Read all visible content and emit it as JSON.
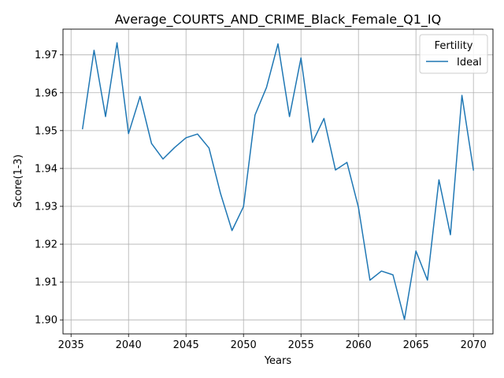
{
  "chart_data": {
    "type": "line",
    "title": "Average_COURTS_AND_CRIME_Black_Female_Q1_IQ",
    "xlabel": "Years",
    "ylabel": "Score(1-3)",
    "xlim": [
      2034.3,
      2071.7
    ],
    "ylim": [
      1.8963,
      1.9768
    ],
    "xticks": [
      2035,
      2040,
      2045,
      2050,
      2055,
      2060,
      2065,
      2070
    ],
    "yticks": [
      1.9,
      1.91,
      1.92,
      1.93,
      1.94,
      1.95,
      1.96,
      1.97
    ],
    "xtick_labels": [
      "2035",
      "2040",
      "2045",
      "2050",
      "2055",
      "2060",
      "2065",
      "2070"
    ],
    "ytick_labels": [
      "1.90",
      "1.91",
      "1.92",
      "1.93",
      "1.94",
      "1.95",
      "1.96",
      "1.97"
    ],
    "grid": true,
    "legend": {
      "title": "Fertility",
      "placement": "top-right"
    },
    "series": [
      {
        "name": "Ideal",
        "color": "#1f77b4",
        "x": [
          2036,
          2037,
          2038,
          2039,
          2040,
          2041,
          2042,
          2043,
          2044,
          2045,
          2046,
          2047,
          2048,
          2049,
          2050,
          2051,
          2052,
          2053,
          2054,
          2055,
          2056,
          2057,
          2058,
          2059,
          2060,
          2061,
          2062,
          2063,
          2064,
          2065,
          2066,
          2067,
          2068,
          2069,
          2070
        ],
        "y": [
          1.9505,
          1.9712,
          1.9537,
          1.9732,
          1.9492,
          1.959,
          1.9466,
          1.9425,
          1.9455,
          1.9481,
          1.9491,
          1.9454,
          1.9334,
          1.9236,
          1.9299,
          1.9541,
          1.9614,
          1.9729,
          1.9537,
          1.9692,
          1.9469,
          1.9532,
          1.9396,
          1.9416,
          1.9297,
          1.9105,
          1.9129,
          1.9119,
          1.9001,
          1.9182,
          1.9105,
          1.937,
          1.9225,
          1.9593,
          1.9396
        ]
      }
    ]
  }
}
